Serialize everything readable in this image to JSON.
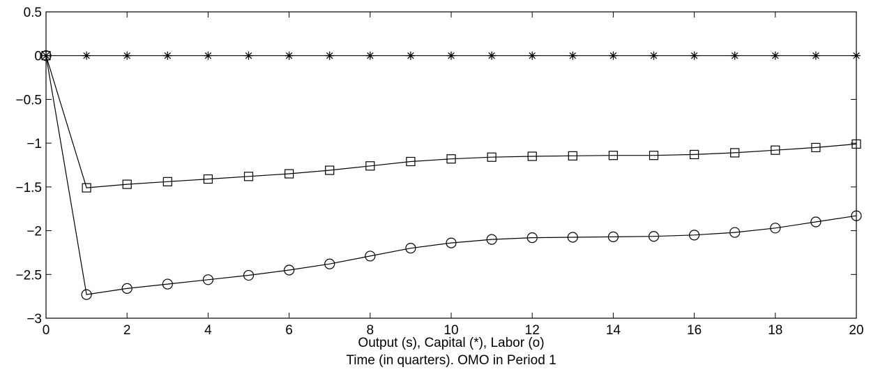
{
  "chart_data": {
    "type": "line",
    "title": "",
    "xlabel": "Output (s), Capital (*), Labor (o)",
    "xlabel2": "Time (in quarters). OMO in Period 1",
    "ylabel": "",
    "xlim": [
      0,
      20
    ],
    "ylim": [
      -3,
      0.5
    ],
    "grid": false,
    "x_ticks": [
      "0",
      "2",
      "4",
      "6",
      "8",
      "10",
      "12",
      "14",
      "16",
      "18",
      "20"
    ],
    "y_ticks": [
      "0.5",
      "0",
      "−0.5",
      "−1",
      "−1.5",
      "−2",
      "−2.5",
      "−3"
    ],
    "x": [
      0,
      1,
      2,
      3,
      4,
      5,
      6,
      7,
      8,
      9,
      10,
      11,
      12,
      13,
      14,
      15,
      16,
      17,
      18,
      19,
      20
    ],
    "series": [
      {
        "marker": "square",
        "values": [
          0,
          -1.51,
          -1.47,
          -1.44,
          -1.41,
          -1.38,
          -1.35,
          -1.31,
          -1.26,
          -1.21,
          -1.18,
          -1.16,
          -1.15,
          -1.145,
          -1.14,
          -1.14,
          -1.13,
          -1.11,
          -1.08,
          -1.05,
          -1.01
        ]
      },
      {
        "marker": "star",
        "values": [
          0,
          0,
          0,
          0,
          0,
          0,
          0,
          0,
          0,
          0,
          0,
          0,
          0,
          0,
          0,
          0,
          0,
          0,
          0,
          0,
          0
        ]
      },
      {
        "marker": "circle",
        "values": [
          0,
          -2.73,
          -2.66,
          -2.61,
          -2.56,
          -2.51,
          -2.45,
          -2.38,
          -2.29,
          -2.2,
          -2.14,
          -2.1,
          -2.08,
          -2.075,
          -2.07,
          -2.065,
          -2.05,
          -2.02,
          -1.97,
          -1.9,
          -1.83
        ]
      }
    ]
  }
}
